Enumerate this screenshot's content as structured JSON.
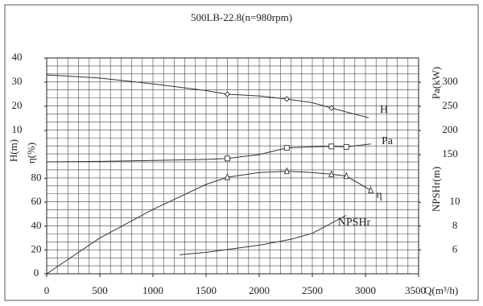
{
  "chart_data": {
    "type": "line",
    "title": "500LB-22.8(n=980rpm)",
    "xlabel": "Q(m³/h)",
    "xlim": [
      0,
      3500
    ],
    "xticks": [
      0,
      500,
      1000,
      1500,
      2000,
      2500,
      3000,
      3500
    ],
    "axes": [
      {
        "label": "H(m)",
        "lim": [
          0,
          40
        ],
        "ticks": [
          10,
          20,
          30,
          40
        ]
      },
      {
        "label": "η(%)",
        "lim": [
          0,
          100
        ],
        "ticks": [
          0,
          20,
          40,
          60,
          80
        ]
      },
      {
        "label": "Pa(kW)",
        "lim": [
          150,
          350
        ],
        "ticks": [
          150,
          200,
          250,
          300
        ]
      },
      {
        "label": "NPSHr(m)",
        "lim": [
          4,
          14
        ],
        "ticks": [
          6,
          8,
          10
        ]
      }
    ],
    "series": [
      {
        "name": "H",
        "axis": 0,
        "color": "#333333",
        "marker": "diamond",
        "x": [
          0,
          500,
          1000,
          1500,
          1700,
          2000,
          2260,
          2500,
          2680,
          2900,
          3030
        ],
        "values": [
          33,
          31.7,
          29.3,
          26.5,
          25,
          24.3,
          23,
          21.5,
          19.3,
          16.7,
          15.3
        ],
        "marked": [
          1700,
          2260,
          2680
        ]
      },
      {
        "name": "Pa",
        "axis": 2,
        "color": "#333333",
        "marker": "square",
        "x": [
          0,
          500,
          1000,
          1500,
          1700,
          2000,
          2260,
          2500,
          2680,
          2820,
          3050
        ],
        "values": [
          135,
          136,
          138,
          140,
          142,
          150,
          164,
          166,
          167,
          166,
          172
        ],
        "marked": [
          1700,
          2260,
          2680,
          2820
        ]
      },
      {
        "name": "η",
        "axis": 1,
        "color": "#333333",
        "marker": "triangle",
        "x": [
          0,
          500,
          1000,
          1500,
          1700,
          2000,
          2260,
          2500,
          2680,
          2820,
          3050
        ],
        "values": [
          0,
          30,
          54,
          75,
          81,
          85,
          86,
          85,
          83.5,
          82,
          70
        ],
        "marked": [
          1700,
          2260,
          2680,
          2820,
          3050
        ]
      },
      {
        "name": "NPSHr",
        "axis": 3,
        "color": "#333333",
        "marker": "none",
        "x": [
          1250,
          1500,
          2000,
          2300,
          2500,
          2820
        ],
        "values": [
          5.6,
          5.8,
          6.4,
          6.9,
          7.4,
          8.9
        ],
        "marked": []
      }
    ]
  }
}
